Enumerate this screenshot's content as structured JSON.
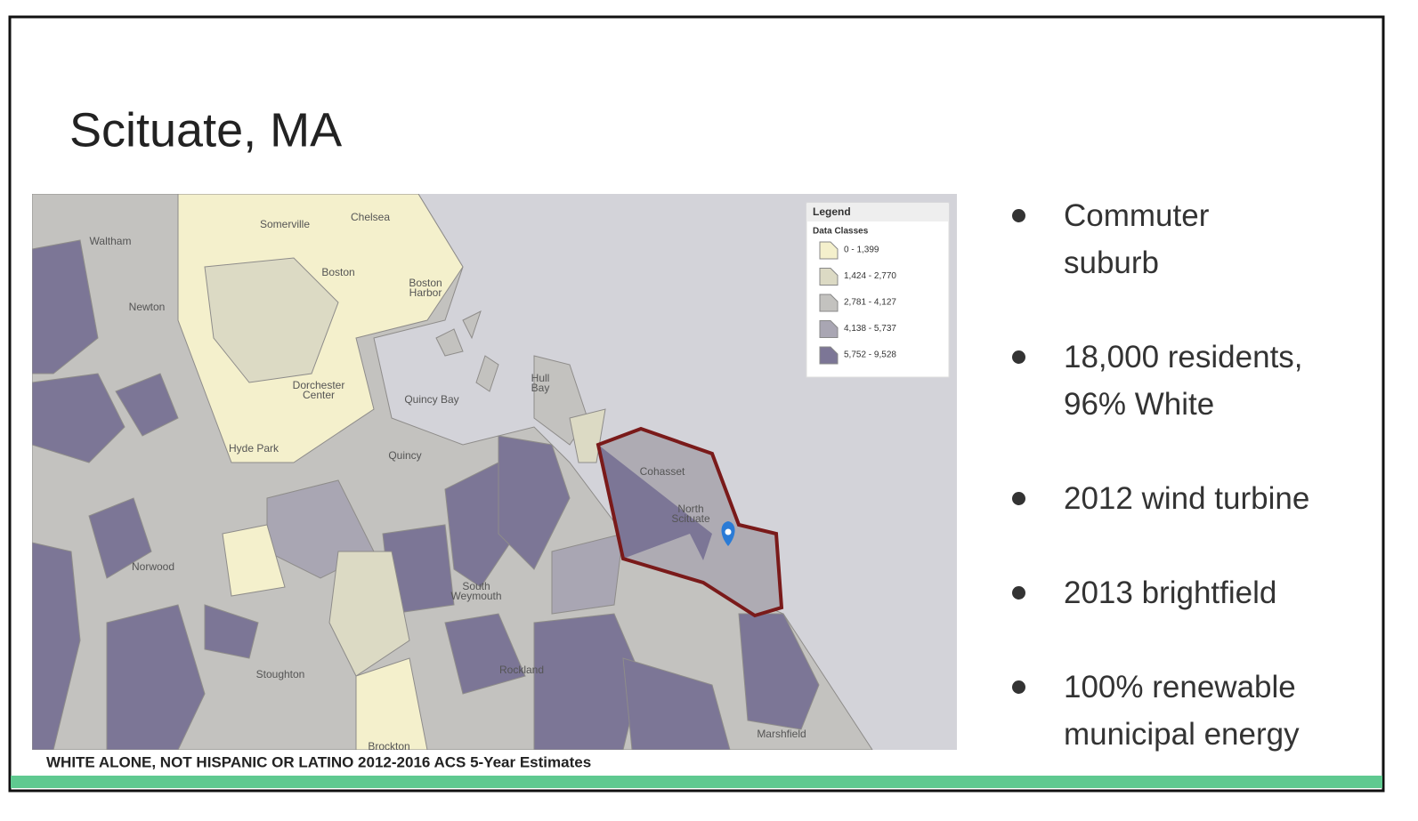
{
  "title": "Scituate, MA",
  "map": {
    "places": [
      {
        "lines": [
          "Waltham"
        ]
      },
      {
        "lines": [
          "Somerville"
        ]
      },
      {
        "lines": [
          "Chelsea"
        ]
      },
      {
        "lines": [
          "Boston"
        ]
      },
      {
        "lines": [
          "Boston",
          "Harbor"
        ]
      },
      {
        "lines": [
          "Newton"
        ]
      },
      {
        "lines": [
          "Dorchester",
          "Center"
        ]
      },
      {
        "lines": [
          "Quincy Bay"
        ]
      },
      {
        "lines": [
          "Hull",
          "Bay"
        ]
      },
      {
        "lines": [
          "Hyde Park"
        ]
      },
      {
        "lines": [
          "Quincy"
        ]
      },
      {
        "lines": [
          "Cohasset"
        ]
      },
      {
        "lines": [
          "North",
          "Scituate"
        ]
      },
      {
        "lines": [
          "Norwood"
        ]
      },
      {
        "lines": [
          "South",
          "Weymouth"
        ]
      },
      {
        "lines": [
          "Stoughton"
        ]
      },
      {
        "lines": [
          "Rockland"
        ]
      },
      {
        "lines": [
          "Marshfield"
        ]
      },
      {
        "lines": [
          "Brockton"
        ]
      }
    ],
    "legend": {
      "title": "Legend",
      "subtitle": "Data Classes",
      "classes": [
        {
          "label": "0 - 1,399",
          "color": "#f4f0cc"
        },
        {
          "label": "1,424 - 2,770",
          "color": "#dcdac4"
        },
        {
          "label": "2,781 - 4,127",
          "color": "#c3c2bf"
        },
        {
          "label": "4,138 - 5,737",
          "color": "#a9a6b3"
        },
        {
          "label": "5,752 - 9,528",
          "color": "#7c7696"
        }
      ]
    }
  },
  "bullets": [
    "Commuter suburb",
    "18,000 residents, 96% White",
    "2012 wind turbine",
    "2013 brightfield",
    "100% renewable municipal energy"
  ],
  "caption": "WHITE ALONE, NOT HISPANIC OR LATINO 2012-2016 ACS 5-Year Estimates"
}
